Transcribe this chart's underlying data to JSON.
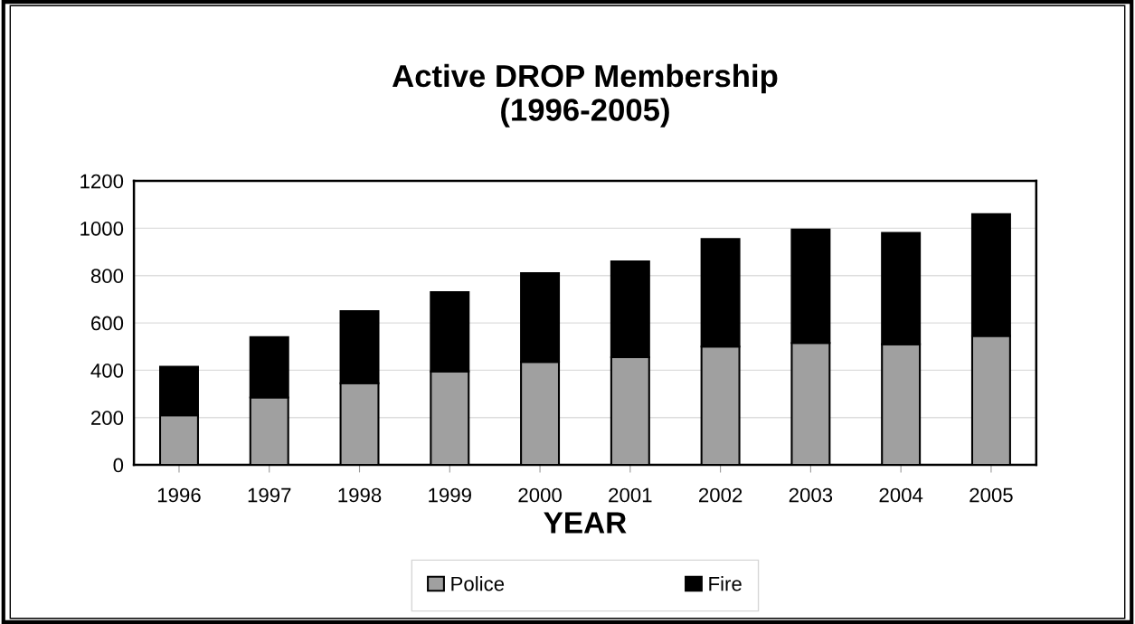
{
  "chart_data": {
    "type": "bar",
    "stacked": true,
    "title": "Active DROP Membership\n(1996-2005)",
    "xlabel": "YEAR",
    "categories": [
      "1996",
      "1997",
      "1998",
      "1999",
      "2000",
      "2001",
      "2002",
      "2003",
      "2004",
      "2005"
    ],
    "series": [
      {
        "name": "Police",
        "color": "#a0a0a0",
        "values": [
          210,
          285,
          345,
          395,
          435,
          455,
          500,
          515,
          510,
          545
        ]
      },
      {
        "name": "Fire",
        "color": "#000000",
        "values": [
          205,
          255,
          305,
          335,
          375,
          405,
          455,
          480,
          470,
          515
        ]
      }
    ],
    "ylim": [
      0,
      1200
    ],
    "yticks": [
      0,
      200,
      400,
      600,
      800,
      1000,
      1200
    ],
    "grid": "y",
    "legend": "bottom"
  }
}
